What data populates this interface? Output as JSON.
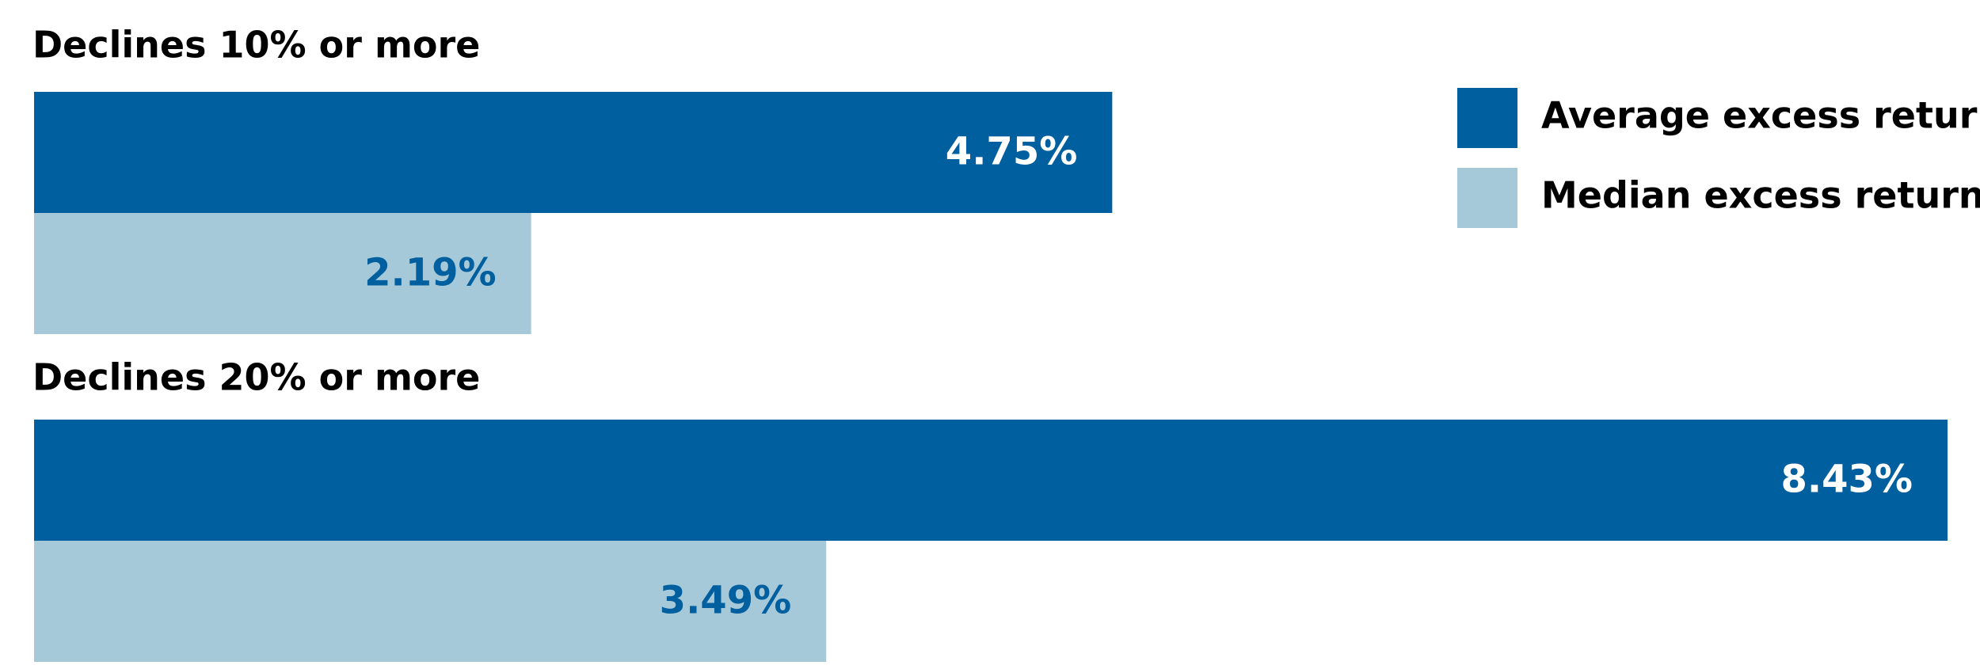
{
  "chart_data": {
    "type": "grouped-hbar",
    "categories": [
      "Declines 10% or more",
      "Declines 20% or more"
    ],
    "series": [
      {
        "name": "Average excess return",
        "color": "#005f9e",
        "label_color": "#ffffff",
        "values": [
          4.75,
          8.43
        ],
        "value_labels": [
          "4.75%",
          "8.43%"
        ]
      },
      {
        "name": "Median excess return",
        "color": "#a6c9da",
        "label_color": "#005f9e",
        "values": [
          2.19,
          3.49
        ],
        "value_labels": [
          "2.19%",
          "3.49%"
        ]
      }
    ],
    "legend": "top-right"
  }
}
